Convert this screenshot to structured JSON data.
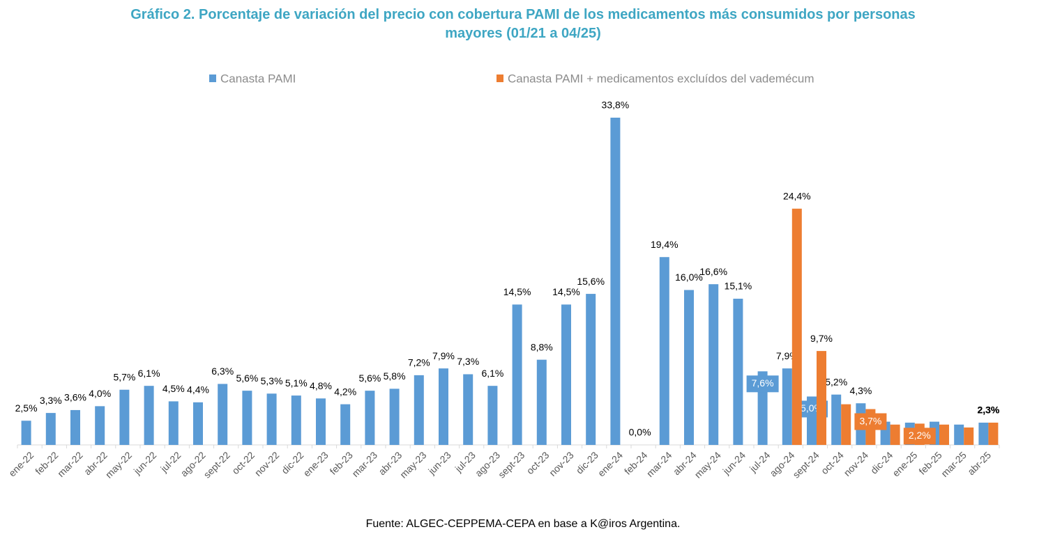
{
  "chart_data": {
    "type": "bar",
    "title": "Gráfico 2. Porcentaje de variación del precio con cobertura PAMI de los medicamentos más consumidos por personas mayores (01/21 a 04/25)",
    "source": "Fuente: ALGEC-CEPPEMA-CEPA en base a K@iros Argentina.",
    "categories": [
      "ene-22",
      "feb-22",
      "mar-22",
      "abr-22",
      "may-22",
      "jun-22",
      "jul-22",
      "ago-22",
      "sept-22",
      "oct-22",
      "nov-22",
      "dic-22",
      "ene-23",
      "feb-23",
      "mar-23",
      "abr-23",
      "may-23",
      "jun-23",
      "jul-23",
      "ago-23",
      "sept-23",
      "oct-23",
      "nov-23",
      "dic-23",
      "ene-24",
      "feb-24",
      "mar-24",
      "abr-24",
      "may-24",
      "jun-24",
      "jul-24",
      "ago-24",
      "sept-24",
      "oct-24",
      "nov-24",
      "dic-24",
      "ene-25",
      "feb-25",
      "mar-25",
      "abr-25"
    ],
    "series": [
      {
        "name": "Canasta PAMI",
        "color": "#5b9bd5",
        "values": [
          2.5,
          3.3,
          3.6,
          4.0,
          5.7,
          6.1,
          4.5,
          4.4,
          6.3,
          5.6,
          5.3,
          5.1,
          4.8,
          4.2,
          5.6,
          5.8,
          7.2,
          7.9,
          7.3,
          6.1,
          14.5,
          8.8,
          14.5,
          15.6,
          33.8,
          0.0,
          19.4,
          16.0,
          16.6,
          15.1,
          7.6,
          7.9,
          5.0,
          5.2,
          4.3,
          2.4,
          2.3,
          2.4,
          2.1,
          2.3
        ],
        "value_labels": [
          "2,5%",
          "3,3%",
          "3,6%",
          "4,0%",
          "5,7%",
          "6,1%",
          "4,5%",
          "4,4%",
          "6,3%",
          "5,6%",
          "5,3%",
          "5,1%",
          "4,8%",
          "4,2%",
          "5,6%",
          "5,8%",
          "7,2%",
          "7,9%",
          "7,3%",
          "6,1%",
          "14,5%",
          "8,8%",
          "14,5%",
          "15,6%",
          "33,8%",
          "0,0%",
          "19,4%",
          "16,0%",
          "16,6%",
          "15,1%",
          "7,6%",
          "7,9%",
          "5,0%",
          "5,2%",
          "4,3%",
          null,
          null,
          null,
          null,
          "2,3%"
        ]
      },
      {
        "name": "Canasta PAMI + medicamentos excluídos del vademécum",
        "color": "#ed7d31",
        "values": [
          null,
          null,
          null,
          null,
          null,
          null,
          null,
          null,
          null,
          null,
          null,
          null,
          null,
          null,
          null,
          null,
          null,
          null,
          null,
          null,
          null,
          null,
          null,
          null,
          null,
          null,
          null,
          null,
          null,
          null,
          null,
          24.4,
          9.7,
          4.2,
          3.7,
          2.1,
          2.2,
          2.1,
          1.8,
          2.3
        ],
        "value_labels": [
          null,
          null,
          null,
          null,
          null,
          null,
          null,
          null,
          null,
          null,
          null,
          null,
          null,
          null,
          null,
          null,
          null,
          null,
          null,
          null,
          null,
          null,
          null,
          null,
          null,
          null,
          null,
          null,
          null,
          null,
          null,
          "24,4%",
          "9,7%",
          null,
          "3,7%",
          null,
          "2,2%",
          null,
          null,
          "2,3%"
        ]
      }
    ],
    "ylim": [
      0,
      35
    ],
    "legend": "top"
  }
}
